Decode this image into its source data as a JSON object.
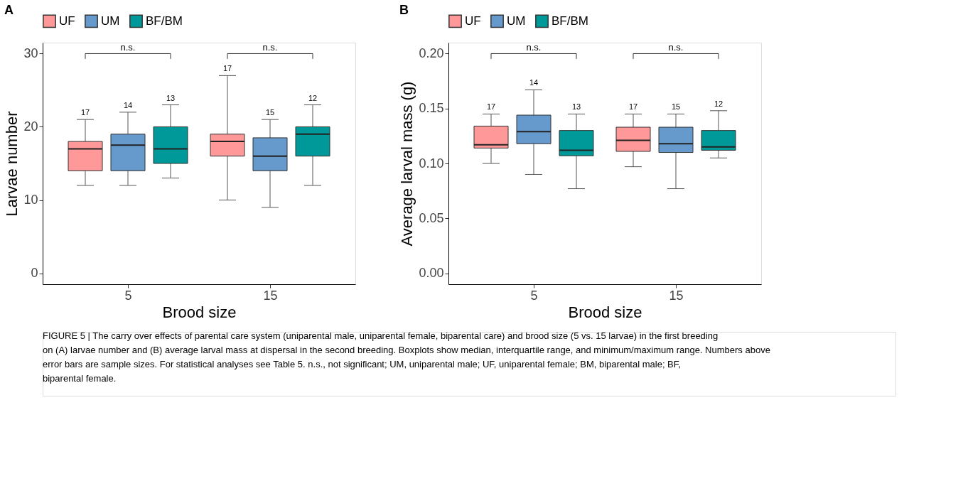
{
  "chart_data": [
    {
      "type": "box",
      "title": "A",
      "categories": [
        "5",
        "15"
      ],
      "xlabel": "Brood size",
      "ylabel": "Larvae number",
      "ylim": [
        -1.5,
        31.5
      ],
      "yticks": [
        0,
        10,
        20,
        30
      ],
      "grid": false,
      "legend": "top",
      "series": [
        {
          "name": "UF",
          "color": "#ff9999",
          "value_labels": [
            "17",
            "17"
          ],
          "boxes": [
            {
              "low": 12,
              "q1": 14,
              "median": 17,
              "q3": 18,
              "high": 21
            },
            {
              "low": 10,
              "q1": 16,
              "median": 18,
              "q3": 19,
              "high": 27
            }
          ]
        },
        {
          "name": "UM",
          "color": "#6699cc",
          "value_labels": [
            "14",
            "15"
          ],
          "boxes": [
            {
              "low": 12,
              "q1": 14,
              "median": 17.5,
              "q3": 19,
              "high": 22
            },
            {
              "low": 9,
              "q1": 14,
              "median": 16,
              "q3": 18.5,
              "high": 21
            }
          ]
        },
        {
          "name": "BF/BM",
          "color": "#009999",
          "value_labels": [
            "13",
            "12"
          ],
          "boxes": [
            {
              "low": 13,
              "q1": 15,
              "median": 17,
              "q3": 20,
              "high": 23
            },
            {
              "low": 12,
              "q1": 16,
              "median": 19,
              "q3": 20,
              "high": 23
            }
          ]
        }
      ],
      "annotations": [
        "n.s.",
        "n.s.",
        "FIGURE 5 | The carry over effects of parental care system (uniparental male, uniparental female, biparental care) and brood size (5 vs. 15 larvae) in the first breeding on (A) larvae number and (B) average larval mass at dispersal in the second breeding. Boxplots show median, interquartile range, and minimum/maximum range. Numbers above error bars are sample sizes. For statistical analyses see Table 5. n.s., not significant; UM, uniparental male; UF, uniparental female; BM, biparental male; BF, biparental female."
      ]
    },
    {
      "type": "box",
      "title": "B",
      "categories": [
        "5",
        "15"
      ],
      "xlabel": "Brood size",
      "ylabel": "Average larval mass (g)",
      "ylim": [
        -0.01,
        0.21
      ],
      "yticks": [
        {
          "value": 0,
          "label": "0.00"
        },
        0.05,
        {
          "value": 0.1,
          "label": "0.10"
        },
        0.15,
        {
          "value": 0.2,
          "label": "0.20"
        }
      ],
      "grid": false,
      "legend": "top",
      "series": [
        {
          "name": "UF",
          "color": "#ff9999",
          "value_labels": [
            "17",
            "17"
          ],
          "boxes": [
            {
              "low": 0.1,
              "q1": 0.114,
              "median": 0.117,
              "q3": 0.134,
              "high": 0.145
            },
            {
              "low": 0.097,
              "q1": 0.111,
              "median": 0.121,
              "q3": 0.133,
              "high": 0.145
            }
          ]
        },
        {
          "name": "UM",
          "color": "#6699cc",
          "value_labels": [
            "14",
            "15"
          ],
          "boxes": [
            {
              "low": 0.09,
              "q1": 0.118,
              "median": 0.129,
              "q3": 0.144,
              "high": 0.167
            },
            {
              "low": 0.077,
              "q1": 0.11,
              "median": 0.118,
              "q3": 0.133,
              "high": 0.145
            }
          ]
        },
        {
          "name": "BF/BM",
          "color": "#009999",
          "value_labels": [
            "13",
            "12"
          ],
          "boxes": [
            {
              "low": 0.077,
              "q1": 0.107,
              "median": 0.112,
              "q3": 0.13,
              "high": 0.145
            },
            {
              "low": 0.105,
              "q1": 0.112,
              "median": 0.115,
              "q3": 0.13,
              "high": 0.148
            }
          ]
        }
      ],
      "annotations": [
        "n.s.",
        "n.s."
      ]
    }
  ]
}
